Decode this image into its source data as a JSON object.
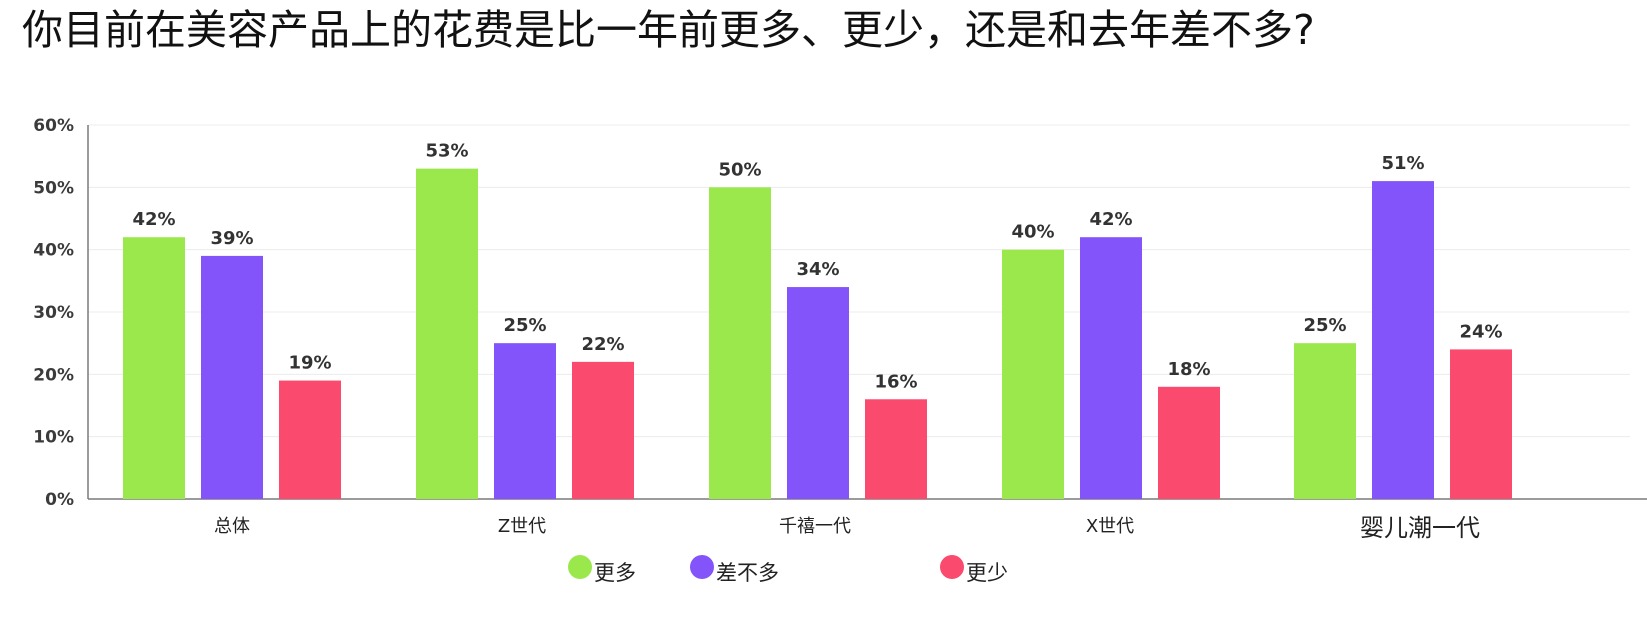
{
  "title": "你目前在美容产品上的花费是比一年前更多、更少，还是和去年差不多?",
  "colors": {
    "more": "#9BE84C",
    "same": "#8254FA",
    "less": "#FA4A6E"
  },
  "chart_data": {
    "type": "bar",
    "title": "你目前在美容产品上的花费是比一年前更多、更少，还是和去年差不多?",
    "categories": [
      "总体",
      "Z世代",
      "千禧一代",
      "X世代",
      "婴儿潮一代"
    ],
    "series": [
      {
        "name": "更多",
        "values": [
          42,
          53,
          50,
          40,
          25
        ]
      },
      {
        "name": "差不多",
        "values": [
          39,
          25,
          34,
          42,
          51
        ]
      },
      {
        "name": "更少",
        "values": [
          19,
          22,
          16,
          18,
          24
        ]
      }
    ],
    "ylim": [
      0,
      60
    ],
    "yticks": [
      "0%",
      "10%",
      "20%",
      "30%",
      "40%",
      "50%",
      "60%"
    ],
    "data_labels": [
      [
        "42%",
        "53%",
        "50%",
        "40%",
        "25%"
      ],
      [
        "39%",
        "25%",
        "34%",
        "42%",
        "51%"
      ],
      [
        "19%",
        "22%",
        "16%",
        "18%",
        "24%"
      ]
    ],
    "grid": true,
    "legend_position": "bottom-center"
  }
}
